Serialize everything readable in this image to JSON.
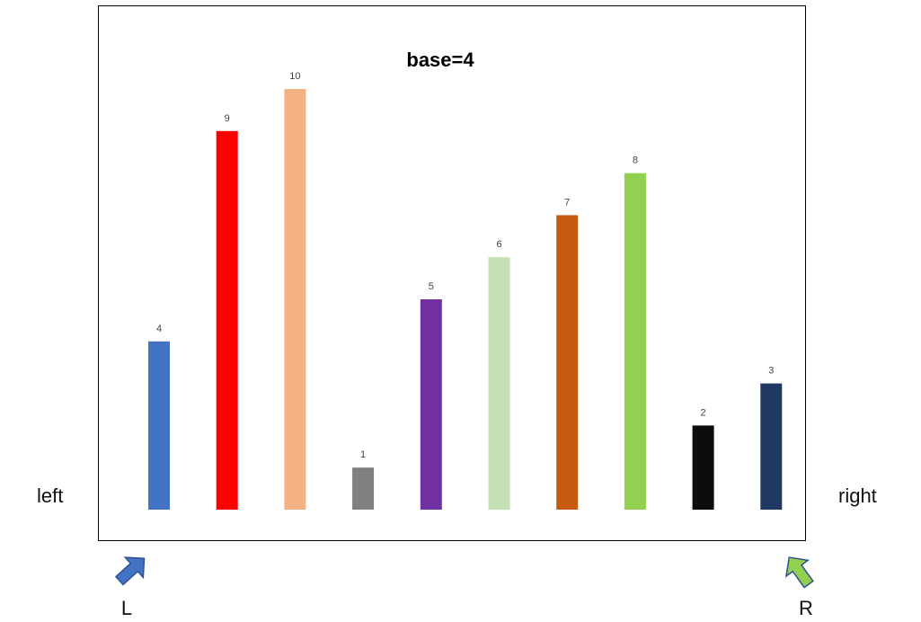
{
  "chart_data": {
    "type": "bar",
    "title": "base=4",
    "categories": [
      "",
      "",
      "",
      "",
      "",
      "",
      "",
      "",
      "",
      ""
    ],
    "values": [
      4,
      9,
      10,
      1,
      5,
      6,
      7,
      8,
      2,
      3
    ],
    "colors": [
      "#4472C4",
      "#FF0000",
      "#F4B183",
      "#808080",
      "#7030A0",
      "#C5E0B4",
      "#C55A11",
      "#92D050",
      "#0D0D0D",
      "#203864"
    ],
    "data_labels": [
      "4",
      "9",
      "10",
      "1",
      "5",
      "6",
      "7",
      "8",
      "2",
      "3"
    ],
    "ylim": [
      0,
      10
    ],
    "grid": false,
    "legend": "none",
    "xlabel": "",
    "ylabel": ""
  },
  "labels": {
    "left": "left",
    "right": "right"
  },
  "pointers": {
    "left": {
      "label": "L",
      "color": "#4472C4"
    },
    "right": {
      "label": "R",
      "color": "#92D050"
    }
  }
}
